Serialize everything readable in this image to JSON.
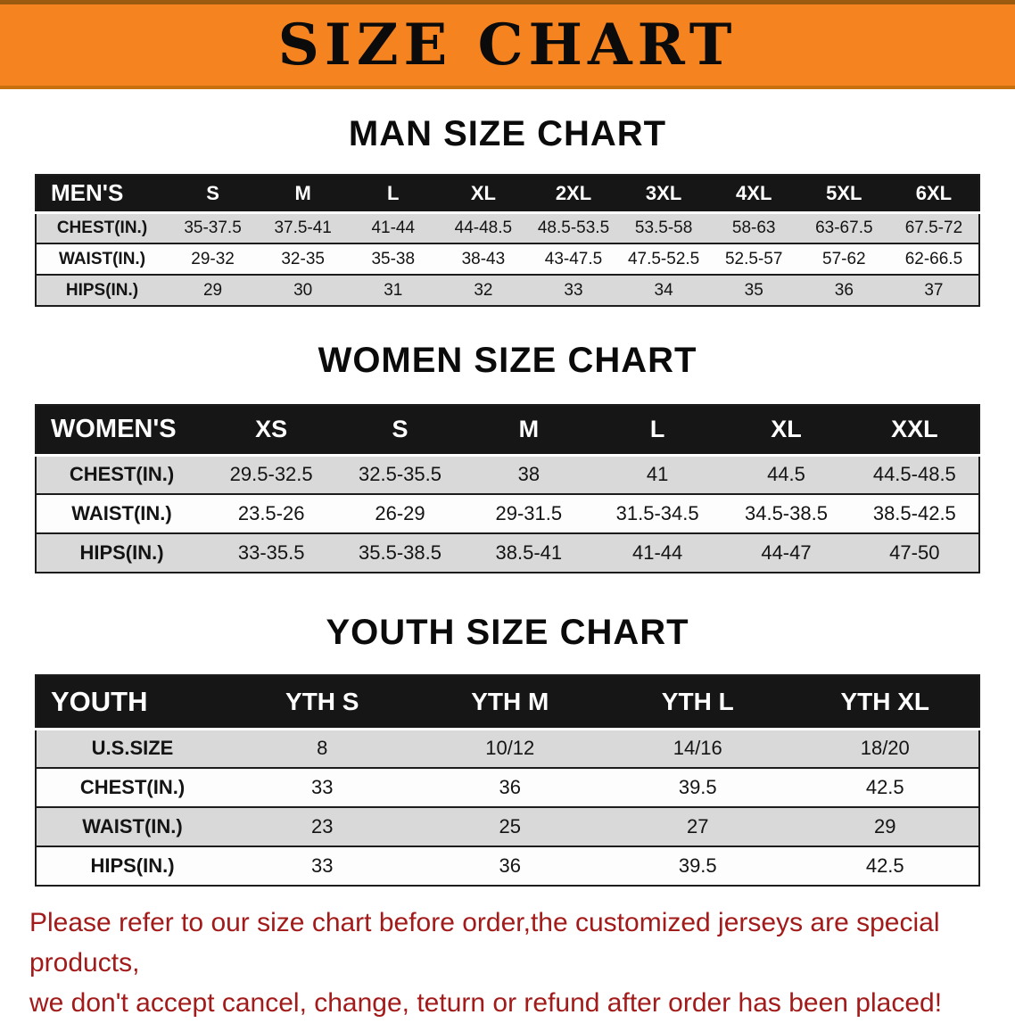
{
  "colors": {
    "banner-orange": "#f5831f",
    "banner-edge": "#9a5a10",
    "banner-edge-bottom": "#c9700e",
    "header-black": "#161616",
    "row-gray": "#d9d9d9",
    "row-white": "#fdfdfd",
    "border-dark": "#1c1c1c",
    "note-red": "#a31a1a"
  },
  "banner": {
    "title": "SIZE CHART"
  },
  "sections": [
    {
      "heading": "MAN SIZE CHART",
      "table": {
        "header": [
          "MEN'S",
          "S",
          "M",
          "L",
          "XL",
          "2XL",
          "3XL",
          "4XL",
          "5XL",
          "6XL"
        ],
        "rows": [
          {
            "label": "CHEST(IN.)",
            "values": [
              "35-37.5",
              "37.5-41",
              "41-44",
              "44-48.5",
              "48.5-53.5",
              "53.5-58",
              "58-63",
              "63-67.5",
              "67.5-72"
            ]
          },
          {
            "label": "WAIST(IN.)",
            "values": [
              "29-32",
              "32-35",
              "35-38",
              "38-43",
              "43-47.5",
              "47.5-52.5",
              "52.5-57",
              "57-62",
              "62-66.5"
            ]
          },
          {
            "label": "HIPS(IN.)",
            "values": [
              "29",
              "30",
              "31",
              "32",
              "33",
              "34",
              "35",
              "36",
              "37"
            ]
          }
        ]
      }
    },
    {
      "heading": "WOMEN SIZE CHART",
      "table": {
        "header": [
          "WOMEN'S",
          "XS",
          "S",
          "M",
          "L",
          "XL",
          "XXL"
        ],
        "rows": [
          {
            "label": "CHEST(IN.)",
            "values": [
              "29.5-32.5",
              "32.5-35.5",
              "38",
              "41",
              "44.5",
              "44.5-48.5"
            ]
          },
          {
            "label": "WAIST(IN.)",
            "values": [
              "23.5-26",
              "26-29",
              "29-31.5",
              "31.5-34.5",
              "34.5-38.5",
              "38.5-42.5"
            ]
          },
          {
            "label": "HIPS(IN.)",
            "values": [
              "33-35.5",
              "35.5-38.5",
              "38.5-41",
              "41-44",
              "44-47",
              "47-50"
            ]
          }
        ]
      }
    },
    {
      "heading": "YOUTH SIZE CHART",
      "table": {
        "header": [
          "YOUTH",
          "YTH S",
          "YTH M",
          "YTH L",
          "YTH XL"
        ],
        "rows": [
          {
            "label": "U.S.SIZE",
            "values": [
              "8",
              "10/12",
              "14/16",
              "18/20"
            ]
          },
          {
            "label": "CHEST(IN.)",
            "values": [
              "33",
              "36",
              "39.5",
              "42.5"
            ]
          },
          {
            "label": "WAIST(IN.)",
            "values": [
              "23",
              "25",
              "27",
              "29"
            ]
          },
          {
            "label": "HIPS(IN.)",
            "values": [
              "33",
              "36",
              "39.5",
              "42.5"
            ]
          }
        ]
      }
    }
  ],
  "footnote": {
    "lines": [
      "Please refer to our size chart before order,the customized jerseys are special products,",
      "we don't accept cancel, change, teturn or refund after order has been placed!"
    ]
  }
}
